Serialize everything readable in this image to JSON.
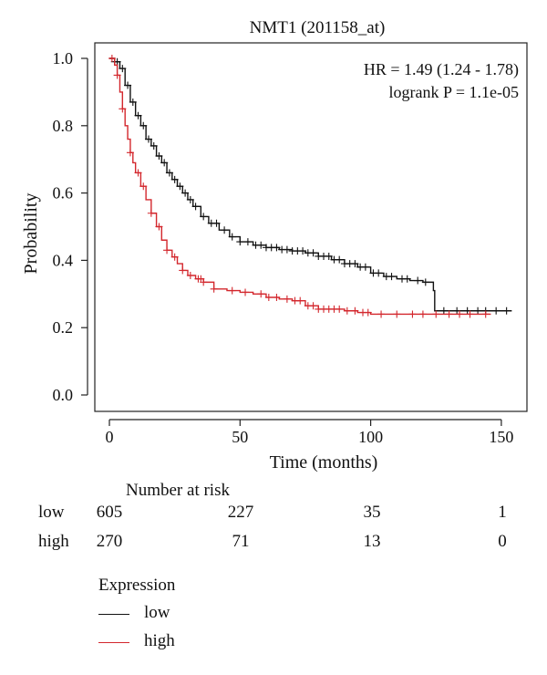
{
  "chart_data": {
    "type": "line",
    "title": "NMT1 (201158_at)",
    "xlabel": "Time (months)",
    "ylabel": "Probability",
    "xlim": [
      0,
      155
    ],
    "ylim": [
      0,
      1.0
    ],
    "x_ticks": [
      0,
      50,
      100,
      150
    ],
    "y_ticks": [
      "0.0",
      "0.2",
      "0.4",
      "0.6",
      "0.8",
      "1.0"
    ],
    "y_tick_values": [
      0.0,
      0.2,
      0.4,
      0.6,
      0.8,
      1.0
    ],
    "annotations": [
      "HR = 1.49 (1.24 - 1.78)",
      "logrank P = 1.1e-05"
    ],
    "grid": false,
    "series": [
      {
        "name": "low",
        "color": "#111111",
        "points": [
          [
            0,
            1.0
          ],
          [
            2,
            0.99
          ],
          [
            4,
            0.97
          ],
          [
            6,
            0.92
          ],
          [
            8,
            0.87
          ],
          [
            10,
            0.83
          ],
          [
            12,
            0.8
          ],
          [
            14,
            0.76
          ],
          [
            16,
            0.74
          ],
          [
            18,
            0.71
          ],
          [
            20,
            0.69
          ],
          [
            22,
            0.66
          ],
          [
            24,
            0.64
          ],
          [
            26,
            0.62
          ],
          [
            28,
            0.6
          ],
          [
            30,
            0.58
          ],
          [
            32,
            0.56
          ],
          [
            35,
            0.53
          ],
          [
            38,
            0.51
          ],
          [
            42,
            0.49
          ],
          [
            46,
            0.47
          ],
          [
            50,
            0.455
          ],
          [
            55,
            0.445
          ],
          [
            60,
            0.438
          ],
          [
            65,
            0.432
          ],
          [
            70,
            0.428
          ],
          [
            75,
            0.422
          ],
          [
            80,
            0.412
          ],
          [
            85,
            0.402
          ],
          [
            90,
            0.39
          ],
          [
            95,
            0.38
          ],
          [
            100,
            0.362
          ],
          [
            105,
            0.352
          ],
          [
            110,
            0.345
          ],
          [
            115,
            0.34
          ],
          [
            120,
            0.335
          ],
          [
            124,
            0.31
          ],
          [
            124.5,
            0.25
          ],
          [
            130,
            0.25
          ],
          [
            140,
            0.25
          ],
          [
            150,
            0.25
          ],
          [
            154,
            0.25
          ]
        ],
        "censor_x": [
          2,
          3,
          5,
          7,
          9,
          11,
          13,
          15,
          17,
          19,
          21,
          23,
          25,
          27,
          29,
          31,
          33,
          36,
          39,
          41,
          44,
          47,
          50,
          53,
          56,
          58,
          60,
          62,
          64,
          66,
          68,
          70,
          72,
          74,
          76,
          78,
          80,
          82,
          84,
          86,
          88,
          90,
          92,
          94,
          96,
          98,
          101,
          103,
          106,
          108,
          112,
          114,
          118,
          121,
          128,
          133,
          137,
          141,
          144,
          148,
          152
        ]
      },
      {
        "name": "high",
        "color": "#d3272d",
        "points": [
          [
            0,
            1.0
          ],
          [
            2,
            0.98
          ],
          [
            3,
            0.95
          ],
          [
            4,
            0.9
          ],
          [
            5,
            0.85
          ],
          [
            6,
            0.8
          ],
          [
            7,
            0.76
          ],
          [
            8,
            0.72
          ],
          [
            9,
            0.69
          ],
          [
            10,
            0.66
          ],
          [
            12,
            0.62
          ],
          [
            14,
            0.58
          ],
          [
            16,
            0.54
          ],
          [
            18,
            0.5
          ],
          [
            20,
            0.46
          ],
          [
            22,
            0.43
          ],
          [
            24,
            0.41
          ],
          [
            26,
            0.39
          ],
          [
            28,
            0.37
          ],
          [
            30,
            0.355
          ],
          [
            33,
            0.345
          ],
          [
            36,
            0.335
          ],
          [
            40,
            0.315
          ],
          [
            45,
            0.31
          ],
          [
            50,
            0.305
          ],
          [
            55,
            0.3
          ],
          [
            60,
            0.29
          ],
          [
            65,
            0.285
          ],
          [
            70,
            0.28
          ],
          [
            75,
            0.265
          ],
          [
            80,
            0.255
          ],
          [
            85,
            0.255
          ],
          [
            90,
            0.25
          ],
          [
            95,
            0.245
          ],
          [
            100,
            0.24
          ],
          [
            110,
            0.24
          ],
          [
            120,
            0.24
          ],
          [
            130,
            0.24
          ],
          [
            140,
            0.24
          ],
          [
            146,
            0.24
          ]
        ],
        "censor_x": [
          1,
          3,
          5,
          8,
          11,
          13,
          16,
          19,
          22,
          25,
          28,
          31,
          34,
          35,
          36,
          40,
          47,
          52,
          58,
          61,
          64,
          68,
          71,
          73,
          76,
          78,
          80,
          82,
          84,
          86,
          88,
          91,
          94,
          97,
          99,
          104,
          110,
          116,
          120,
          125,
          130,
          134,
          138,
          144
        ]
      }
    ],
    "legend_title": "Expression",
    "legend_placement": "bottom-left"
  },
  "risk_table": {
    "header": "Number at risk",
    "times": [
      0,
      50,
      100,
      150
    ],
    "rows": [
      {
        "label": "low",
        "values": [
          "605",
          "227",
          "35",
          "1"
        ]
      },
      {
        "label": "high",
        "values": [
          "270",
          "71",
          "13",
          "0"
        ]
      }
    ]
  }
}
